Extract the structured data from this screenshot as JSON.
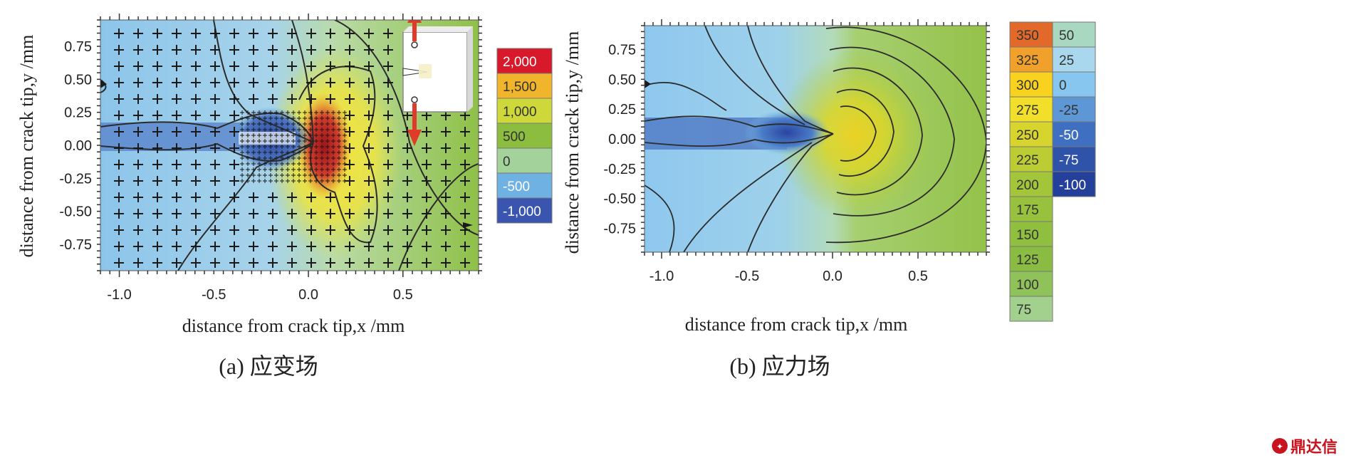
{
  "charts": [
    {
      "id": "a",
      "type": "heatmap",
      "caption": "(a) 应变场",
      "xlabel": "distance from crack tip,x /mm",
      "ylabel": "distance from crack tip,y /mm",
      "xlim": [
        -1.1,
        0.9
      ],
      "ylim": [
        -0.95,
        0.95
      ],
      "xticks": [
        "-1.0",
        "-0.5",
        "0.0",
        "0.5"
      ],
      "xtick_values": [
        -1.0,
        -0.5,
        0.0,
        0.5
      ],
      "yticks": [
        "0.75",
        "0.50",
        "0.25",
        "0.00",
        "-0.25",
        "-0.50",
        "-0.75"
      ],
      "ytick_values": [
        0.75,
        0.5,
        0.25,
        0.0,
        -0.25,
        -0.5,
        -0.75
      ],
      "legend": [
        "2,000",
        "1,500",
        "1,000",
        "500",
        "0",
        "-500",
        "-1,000"
      ],
      "legend_colors": [
        "#d7192b",
        "#f0b52a",
        "#cfd83a",
        "#8cbd3e",
        "#a3d39b",
        "#6fb1e2",
        "#3a55b0"
      ]
    },
    {
      "id": "b",
      "type": "heatmap",
      "caption": "(b) 应力场",
      "xlabel": "distance from crack tip,x /mm",
      "ylabel": "distance from crack tip,y /mm",
      "xlim": [
        -1.1,
        0.9
      ],
      "ylim": [
        -0.95,
        0.95
      ],
      "xticks": [
        "-1.0",
        "-0.5",
        "0.0",
        "0.5"
      ],
      "xtick_values": [
        -1.0,
        -0.5,
        0.0,
        0.5
      ],
      "yticks": [
        "0.75",
        "0.50",
        "0.25",
        "0.00",
        "-0.25",
        "-0.50",
        "-0.75"
      ],
      "ytick_values": [
        0.75,
        0.5,
        0.25,
        0.0,
        -0.25,
        -0.5,
        -0.75
      ],
      "legend_col1": [
        "350",
        "325",
        "300",
        "275",
        "250",
        "225",
        "200",
        "175",
        "150",
        "125",
        "100",
        "75"
      ],
      "legend_col1_colors": [
        "#e2692a",
        "#f0a02b",
        "#f8d21e",
        "#f2df2a",
        "#d8d42e",
        "#bbcd33",
        "#a2c53a",
        "#98c23d",
        "#90bf40",
        "#8abb43",
        "#8fc35a",
        "#a2d08d"
      ],
      "legend_col2": [
        "50",
        "25",
        "0",
        "-25",
        "-50",
        "-75",
        "-100"
      ],
      "legend_col2_colors": [
        "#a8d8c0",
        "#a9d8ee",
        "#86c6ef",
        "#5e97d6",
        "#3f6fc0",
        "#2f53a8",
        "#25409a"
      ]
    }
  ],
  "chart_data": [
    {
      "type": "heatmap",
      "title": "",
      "xlabel": "distance from crack tip,x /mm",
      "ylabel": "distance from crack tip,y /mm",
      "xlim": [
        -1.1,
        0.9
      ],
      "ylim": [
        -0.95,
        0.95
      ],
      "colorbar_values": [
        2000,
        1500,
        1000,
        500,
        0,
        -500,
        -1000
      ]
    },
    {
      "type": "heatmap",
      "title": "",
      "xlabel": "distance from crack tip,x /mm",
      "ylabel": "distance from crack tip,y /mm",
      "xlim": [
        -1.1,
        0.9
      ],
      "ylim": [
        -0.95,
        0.95
      ],
      "colorbar_values": [
        350,
        325,
        300,
        275,
        250,
        225,
        200,
        175,
        150,
        125,
        100,
        75,
        50,
        25,
        0,
        -25,
        -50,
        -75,
        -100
      ]
    }
  ],
  "watermark": "鼎达信"
}
